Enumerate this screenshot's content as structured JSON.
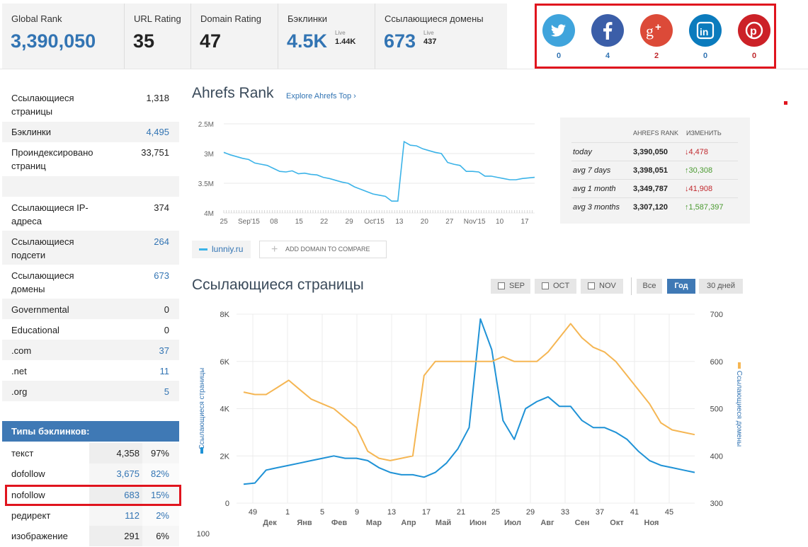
{
  "metrics": [
    {
      "label": "Global Rank",
      "value": "3,390,050",
      "live": "",
      "live_value": ""
    },
    {
      "label": "URL Rating",
      "value": "35",
      "live": "",
      "live_value": ""
    },
    {
      "label": "Domain Rating",
      "value": "47",
      "live": "",
      "live_value": ""
    },
    {
      "label": "Бэклинки",
      "value": "4.5K",
      "live": "Live",
      "live_value": "1.44K"
    },
    {
      "label": "Ссылающиеся домены",
      "value": "673",
      "live": "Live",
      "live_value": "437"
    }
  ],
  "social": [
    {
      "name": "twitter-icon",
      "count": "0",
      "color": "#3fa4dc"
    },
    {
      "name": "facebook-icon",
      "count": "4",
      "color": "#3b5ea8"
    },
    {
      "name": "google-plus-icon",
      "count": "2",
      "color": "#dc4a38"
    },
    {
      "name": "linkedin-icon",
      "count": "0",
      "color": "#0b7bbd"
    },
    {
      "name": "pinterest-icon",
      "count": "0",
      "color": "#cc2127"
    }
  ],
  "sidebar": {
    "stats": [
      {
        "label": "Ссылающиеся страницы",
        "value": "1,318",
        "link": false
      },
      {
        "label": "Бэклинки",
        "value": "4,495",
        "link": true
      },
      {
        "label": "Проиндексировано страниц",
        "value": "33,751",
        "link": false
      },
      {
        "label": "Ссылающиеся IP-адреса",
        "value": "374",
        "link": false
      },
      {
        "label": "Ссылающиеся подсети",
        "value": "264",
        "link": true
      },
      {
        "label": "Ссылающиеся домены",
        "value": "673",
        "link": true
      },
      {
        "label": "Governmental",
        "value": "0",
        "link": false
      },
      {
        "label": "Educational",
        "value": "0",
        "link": false
      },
      {
        "label": ".com",
        "value": "37",
        "link": true
      },
      {
        "label": ".net",
        "value": "11",
        "link": true
      },
      {
        "label": ".org",
        "value": "5",
        "link": true
      }
    ],
    "types_title": "Типы бэклинков:",
    "types": [
      {
        "label": "текст",
        "count": "4,358",
        "pct": "97%",
        "link": false
      },
      {
        "label": "dofollow",
        "count": "3,675",
        "pct": "82%",
        "link": true
      },
      {
        "label": "nofollow",
        "count": "683",
        "pct": "15%",
        "link": true
      },
      {
        "label": "редирект",
        "count": "112",
        "pct": "2%",
        "link": true
      },
      {
        "label": "изображение",
        "count": "291",
        "pct": "6%",
        "link": false
      }
    ]
  },
  "ahrefs_rank": {
    "title": "Ahrefs Rank",
    "explore_link": "Explore Ahrefs Top ›",
    "table": {
      "headers": [
        "AHREFS RANK",
        "ИЗМЕНИТЬ"
      ],
      "rows": [
        {
          "period": "today",
          "rank": "3,390,050",
          "change": "4,478",
          "direction": "down"
        },
        {
          "period": "avg 7 days",
          "rank": "3,398,051",
          "change": "30,308",
          "direction": "up"
        },
        {
          "period": "avg 1 month",
          "rank": "3,349,787",
          "change": "41,908",
          "direction": "down"
        },
        {
          "period": "avg 3 months",
          "rank": "3,307,120",
          "change": "1,587,397",
          "direction": "up"
        }
      ]
    },
    "legend_domain": "lunniy.ru",
    "add_domain": "ADD DOMAIN TO COMPARE"
  },
  "linking_pages": {
    "title": "Ссылающиеся страницы",
    "filters": [
      "SEP",
      "OCT",
      "NOV"
    ],
    "ranges": [
      "Все",
      "Год",
      "30 дней"
    ],
    "active_range": "Год"
  },
  "chart_data": [
    {
      "type": "line",
      "title": "Ahrefs Rank",
      "y_ticks": [
        "2.5M",
        "3M",
        "3.5M",
        "4M"
      ],
      "ylim": [
        2500000,
        4000000
      ],
      "y_inverted": true,
      "x_ticks": [
        "25",
        "Sep'15",
        "08",
        "15",
        "22",
        "29",
        "Oct'15",
        "13",
        "20",
        "27",
        "Nov'15",
        "10",
        "17"
      ],
      "series": [
        {
          "name": "lunniy.ru",
          "color": "#3bb3e8",
          "values": [
            2980000,
            3020000,
            3050000,
            3080000,
            3100000,
            3160000,
            3180000,
            3200000,
            3250000,
            3300000,
            3310000,
            3290000,
            3340000,
            3330000,
            3350000,
            3360000,
            3400000,
            3420000,
            3450000,
            3480000,
            3500000,
            3560000,
            3600000,
            3640000,
            3680000,
            3700000,
            3720000,
            3800000,
            3800000,
            2800000,
            2860000,
            2870000,
            2920000,
            2950000,
            2980000,
            3000000,
            3150000,
            3180000,
            3200000,
            3300000,
            3300000,
            3310000,
            3380000,
            3380000,
            3400000,
            3420000,
            3440000,
            3440000,
            3420000,
            3410000,
            3400000
          ]
        }
      ]
    },
    {
      "type": "line",
      "title": "Ссылающиеся страницы",
      "y_label_left": "Ссылающиеся страницы",
      "y_label_right": "Ссылающиеся домены",
      "y_ticks_left": [
        "0",
        "2K",
        "4K",
        "6K",
        "8K"
      ],
      "ylim_left": [
        0,
        8000
      ],
      "y_ticks_right": [
        "300",
        "400",
        "500",
        "600",
        "700"
      ],
      "ylim_right": [
        300,
        700
      ],
      "x_week_ticks": [
        "49",
        "1",
        "5",
        "9",
        "13",
        "17",
        "21",
        "25",
        "29",
        "33",
        "37",
        "41",
        "45"
      ],
      "x_month_ticks": [
        "Дек",
        "Янв",
        "Фев",
        "Мар",
        "Апр",
        "Май",
        "Июн",
        "Июл",
        "Авг",
        "Сен",
        "Окт",
        "Ноя"
      ],
      "bottom_tick": "100",
      "series": [
        {
          "name": "Ссылающиеся страницы",
          "color": "#1f92d6",
          "axis": "left",
          "values": [
            800,
            850,
            1400,
            1500,
            1600,
            1700,
            1800,
            1900,
            2000,
            1900,
            1900,
            1800,
            1500,
            1300,
            1200,
            1200,
            1100,
            1300,
            1700,
            2300,
            3200,
            7800,
            6500,
            3500,
            2700,
            4000,
            4300,
            4500,
            4100,
            4100,
            3500,
            3200,
            3200,
            3000,
            2700,
            2200,
            1800,
            1600,
            1500,
            1400,
            1300
          ]
        },
        {
          "name": "Ссылающиеся домены",
          "color": "#f5b653",
          "axis": "right",
          "values": [
            535,
            530,
            530,
            545,
            560,
            540,
            520,
            510,
            500,
            480,
            460,
            410,
            395,
            390,
            395,
            400,
            570,
            600,
            600,
            600,
            600,
            600,
            600,
            610,
            600,
            600,
            600,
            620,
            650,
            680,
            650,
            630,
            620,
            600,
            570,
            540,
            510,
            470,
            455,
            450,
            445
          ]
        }
      ]
    }
  ]
}
